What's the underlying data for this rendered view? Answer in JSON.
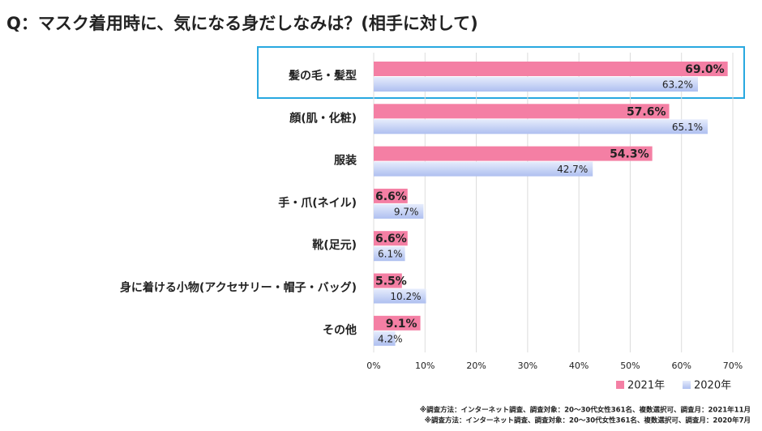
{
  "chart_data": {
    "type": "bar",
    "orientation": "horizontal",
    "title": "Q：マスク着用時に、気になる身だしなみは？(相手に対して)",
    "categories": [
      "髪の毛・髪型",
      "顔(肌・化粧)",
      "服装",
      "手・爪(ネイル)",
      "靴(足元)",
      "身に着ける小物(アクセサリー・帽子・バッグ)",
      "その他"
    ],
    "series": [
      {
        "name": "2021年",
        "color": "#f47fa4",
        "values": [
          69.0,
          57.6,
          54.3,
          6.6,
          6.6,
          5.5,
          9.1
        ],
        "value_labels": [
          "69.0%",
          "57.6%",
          "54.3%",
          "6.6%",
          "6.6%",
          "5.5%",
          "9.1%"
        ]
      },
      {
        "name": "2020年",
        "color": "#c5d2f6",
        "values": [
          63.2,
          65.1,
          42.7,
          9.7,
          6.1,
          10.2,
          4.2
        ],
        "value_labels": [
          "63.2%",
          "65.1%",
          "42.7%",
          "9.7%",
          "6.1%",
          "10.2%",
          "4.2%"
        ]
      }
    ],
    "xlim": [
      0,
      70
    ],
    "xticks": [
      {
        "value": 0,
        "label": "0%"
      },
      {
        "value": 10,
        "label": "10%"
      },
      {
        "value": 20,
        "label": "20%"
      },
      {
        "value": 30,
        "label": "30%"
      },
      {
        "value": 40,
        "label": "40%"
      },
      {
        "value": 50,
        "label": "50%"
      },
      {
        "value": 60,
        "label": "60%"
      },
      {
        "value": 70,
        "label": "70%"
      }
    ],
    "grid": true,
    "legend": "bottom-right",
    "notes": [
      "※調査方法：インターネット調査、調査対象：20～30代女性361名、複数選択可、調査月：2021年11月",
      "※調査方法：インターネット調査、調査対象：20～30代女性361名、複数選択可、調査月：2020年7月"
    ]
  }
}
